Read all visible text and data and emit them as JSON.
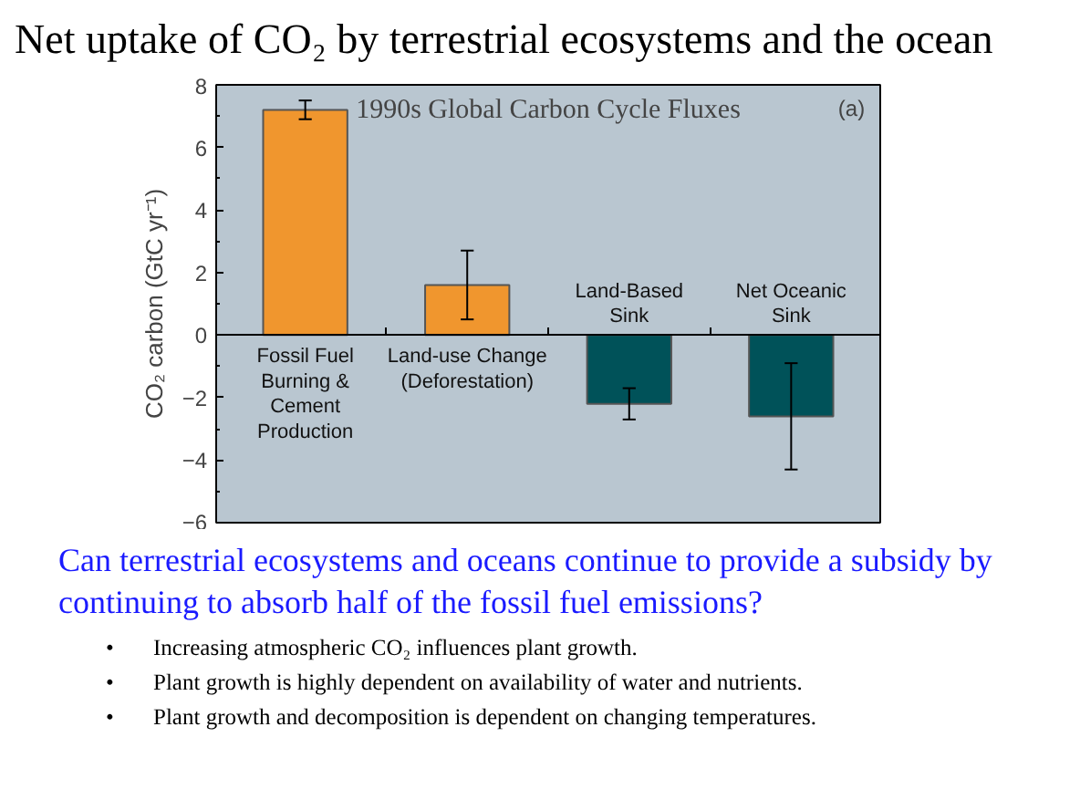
{
  "chart_data": {
    "type": "bar",
    "title": "Net uptake of CO₂ by terrestrial ecosystems and the ocean",
    "subtitle": "1990s Global Carbon Cycle Fluxes",
    "ylabel": "CO₂ carbon (GtC yr⁻¹)",
    "categories": [
      "Fossil Fuel\nBurning &\nCement\nProduction",
      "Land-use Change\n(Deforestation)",
      "Land-Based\nSink",
      "Net Oceanic\nSink"
    ],
    "values": [
      7.2,
      1.6,
      -2.2,
      -2.6
    ],
    "colors": [
      "#f0962e",
      "#f0962e",
      "#005259",
      "#005259"
    ],
    "errors": [
      0.3,
      [
        0.5,
        2.7
      ],
      0.5,
      1.7
    ],
    "ylim": [
      -6,
      8
    ],
    "yticks": [
      -6,
      -4,
      -2,
      0,
      2,
      4,
      6,
      8
    ],
    "grid": false,
    "annotations": [
      "(a)",
      "Can terrestrial ecosystems and oceans continue to provide a subsidy by continuing to absorb half of the fossil fuel emissions?",
      "• Increasing atmospheric CO₂ influences plant growth.",
      "• Plant growth is highly dependent on availability of water and nutrients.",
      "• Plant growth and decomposition is dependent on changing temperatures."
    ]
  }
}
